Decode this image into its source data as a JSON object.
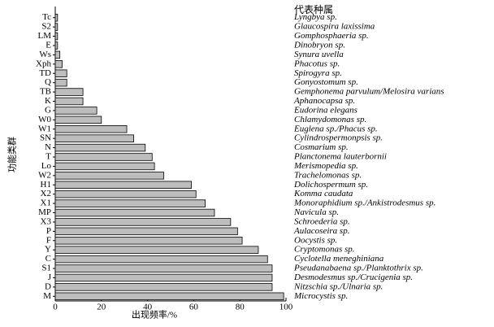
{
  "chart_data": {
    "type": "bar",
    "orientation": "horizontal",
    "x_label": "出现频率/%",
    "y_label": "功能类群",
    "species_header": "代表种属",
    "categories": [
      "Tc",
      "S2",
      "LM",
      "E",
      "Ws",
      "Xph",
      "TD",
      "Q",
      "TB",
      "K",
      "G",
      "W0",
      "W1",
      "SN",
      "N",
      "T",
      "Lo",
      "W2",
      "H1",
      "X2",
      "X1",
      "MP",
      "X3",
      "P",
      "F",
      "Y",
      "C",
      "S1",
      "J",
      "D",
      "M"
    ],
    "species": [
      "Lyngbya sp.",
      "Glaucospira laxissima",
      "Gomphosphaeria sp.",
      "Dinobryon sp.",
      "Synura uvella",
      "Phacotus sp.",
      "Spirogyra sp.",
      "Gonyostomum sp.",
      "Gemphonema parvulum/Melosira varians",
      "Aphanocapsa sp.",
      "Eudorina elegans",
      "Chlamydomonas sp.",
      "Euglena sp./Phacus sp.",
      "Cylindrospermonpsis sp.",
      "Cosmarium sp.",
      "Planctonema lauterbornii",
      "Merismopedia sp.",
      "Trachelomonas sp.",
      "Dolichospermum sp.",
      "Komma caudata",
      "Monoraphidium sp./Ankistrodesmus sp.",
      "Navicula sp.",
      "Schroederia sp.",
      "Aulacoseira sp.",
      "Oocystis sp.",
      "Cryptomonas sp.",
      "Cyclotella meneghiniana",
      "Pseudanabaena sp./Planktothrix sp.",
      "Desmodesmus sp./Crucigenia sp.",
      "Nitzschia sp./Ulnaria sp.",
      "Microcystis sp."
    ],
    "values": [
      1,
      1,
      1,
      1,
      2,
      3,
      5,
      5,
      12,
      12,
      18,
      20,
      31,
      34,
      39,
      42,
      43,
      47,
      59,
      61,
      65,
      69,
      76,
      79,
      81,
      88,
      92,
      94,
      94,
      94,
      99
    ],
    "color": "#bdbdbd",
    "xlim": [
      0,
      100
    ],
    "xticks": [
      0,
      20,
      40,
      60,
      80,
      100
    ]
  }
}
